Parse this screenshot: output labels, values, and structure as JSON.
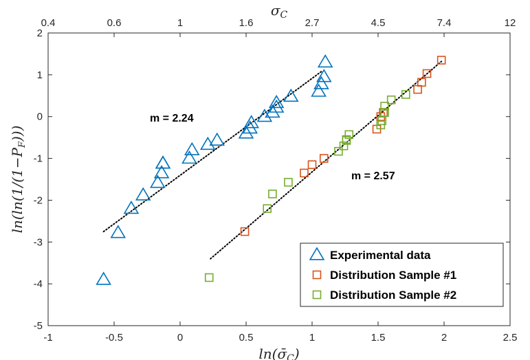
{
  "chart_data": {
    "type": "scatter",
    "title": "",
    "xlabel": "ln(σ̄_C)",
    "x2label": "σ_C",
    "ylabel": "ln(ln(1/(1−P_F)))",
    "xlim": [
      -1,
      2.5
    ],
    "ylim": [
      -5,
      2
    ],
    "x_ticks": [
      "-1",
      "-0.5",
      "0",
      "0.5",
      "1",
      "1.5",
      "2",
      "2.5"
    ],
    "y_ticks": [
      "2",
      "1",
      "0",
      "-1",
      "-2",
      "-3",
      "-4",
      "-5"
    ],
    "x2_ticks": [
      "0.4",
      "0.6",
      "1",
      "1.6",
      "2.7",
      "4.5",
      "7.4",
      "12"
    ],
    "grid": false,
    "legend_position": "bottom-right",
    "series": [
      {
        "name": "Experimental data",
        "marker": "triangle",
        "color": "#0072BD",
        "x": [
          -0.58,
          -0.47,
          -0.37,
          -0.28,
          -0.17,
          -0.14,
          -0.13,
          -0.13,
          0.07,
          0.09,
          0.21,
          0.28,
          0.5,
          0.53,
          0.54,
          0.64,
          0.7,
          0.73,
          0.73,
          0.84,
          1.05,
          1.07,
          1.09,
          1.1
        ],
        "y": [
          -3.9,
          -2.78,
          -2.2,
          -1.88,
          -1.58,
          -1.35,
          -1.12,
          -1.12,
          -1.0,
          -0.8,
          -0.67,
          -0.57,
          -0.4,
          -0.28,
          -0.15,
          0.0,
          0.1,
          0.22,
          0.33,
          0.48,
          0.6,
          0.78,
          0.95,
          1.3
        ]
      },
      {
        "name": "Distribution Sample #1",
        "marker": "square",
        "color": "#D95319",
        "x": [
          0.49,
          0.94,
          1.0,
          1.09,
          1.49,
          1.52,
          1.54,
          1.8,
          1.83,
          1.87,
          1.98
        ],
        "y": [
          -2.75,
          -1.35,
          -1.15,
          -1.0,
          -0.3,
          0.0,
          0.1,
          0.65,
          0.82,
          1.03,
          1.35
        ]
      },
      {
        "name": "Distribution Sample #2",
        "marker": "square",
        "color": "#77AC30",
        "x": [
          0.22,
          0.66,
          0.7,
          0.82,
          1.2,
          1.24,
          1.26,
          1.26,
          1.28,
          1.52,
          1.53,
          1.55,
          1.55,
          1.6,
          1.71
        ],
        "y": [
          -3.85,
          -2.2,
          -1.85,
          -1.57,
          -0.83,
          -0.7,
          -0.55,
          -0.57,
          -0.43,
          -0.2,
          -0.1,
          0.1,
          0.25,
          0.4,
          0.53
        ]
      }
    ],
    "fit_lines": [
      {
        "label": "m = 2.24",
        "slope": 2.24,
        "x": [
          -0.58,
          1.08
        ],
        "y": [
          -2.75,
          1.1
        ]
      },
      {
        "label": "m = 2.57",
        "slope": 2.57,
        "x": [
          0.23,
          1.98
        ],
        "y": [
          -3.4,
          1.32
        ]
      }
    ],
    "annotations": [
      "m = 2.24",
      "m = 2.57"
    ]
  }
}
